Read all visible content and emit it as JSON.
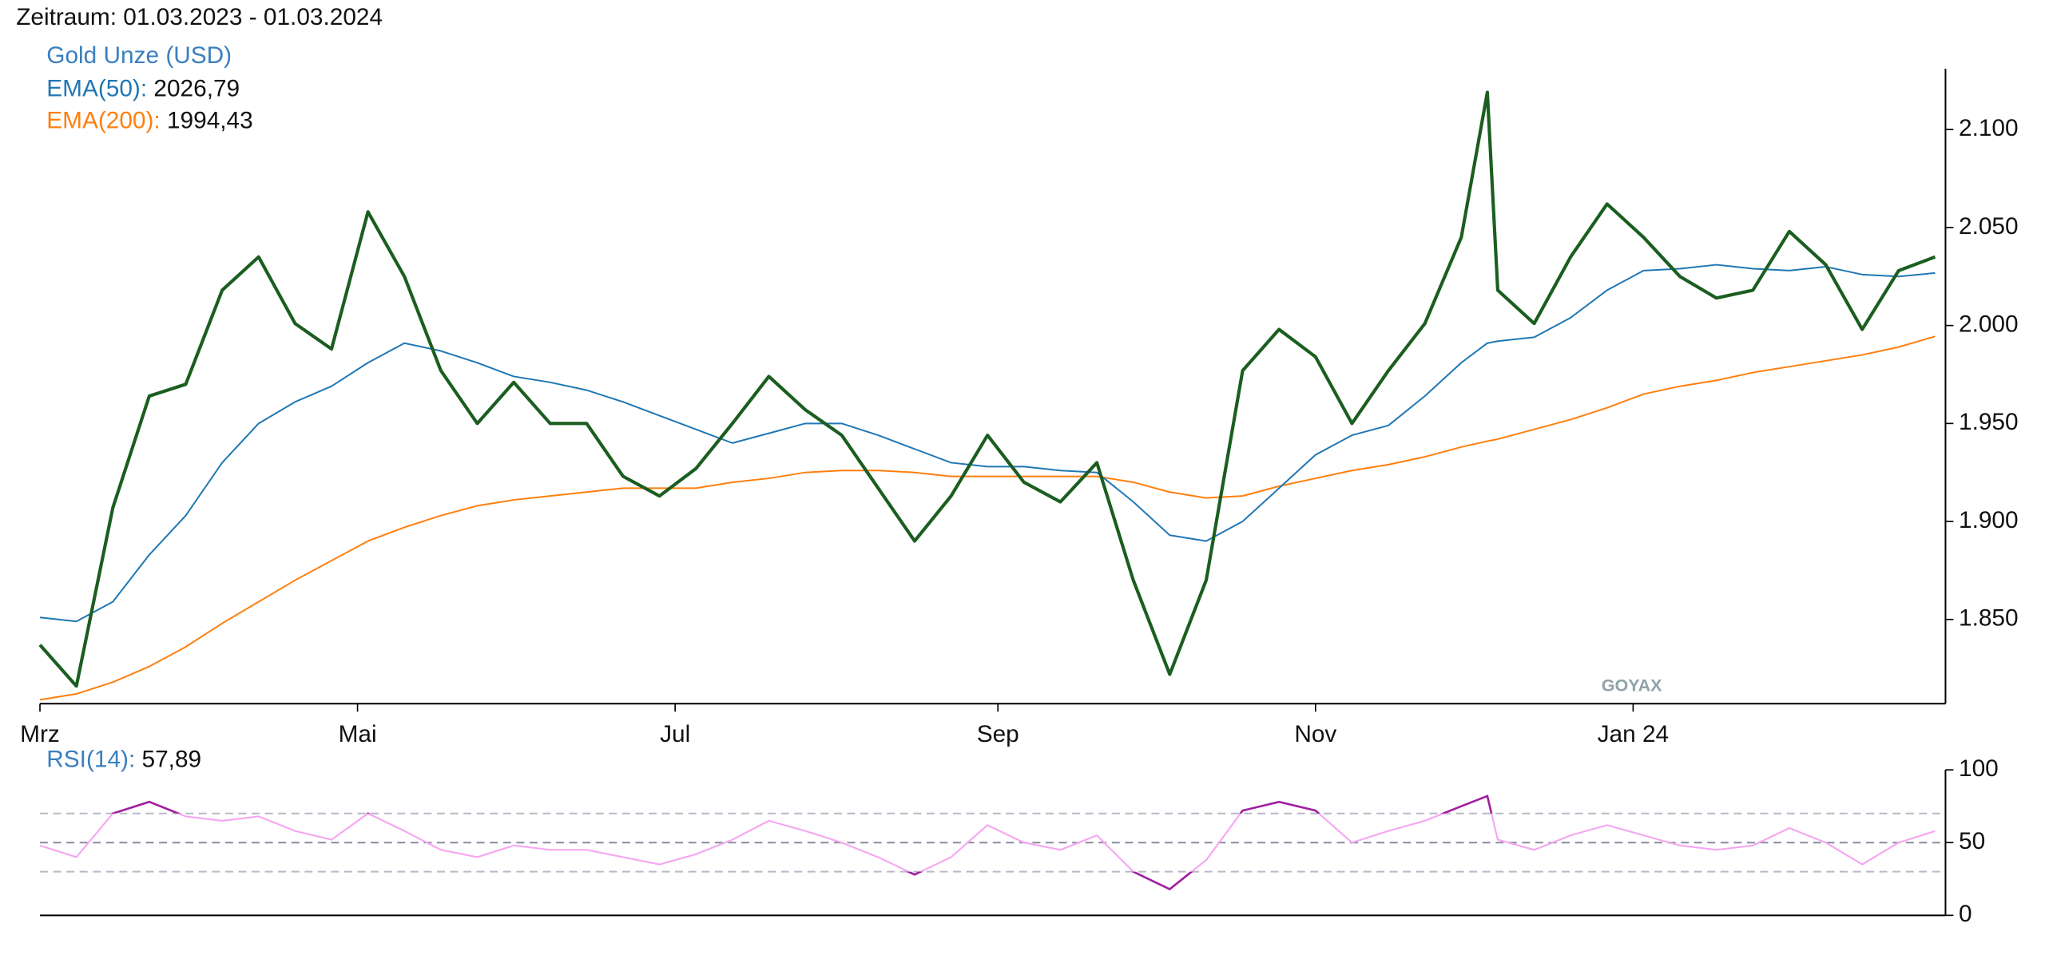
{
  "chart_data": [
    {
      "type": "line",
      "title": "Zeitraum: 01.03.2023 - 01.03.2024",
      "watermark": "GOYAX",
      "x": [
        "2023-03-01",
        "2023-03-08",
        "2023-03-15",
        "2023-03-22",
        "2023-03-29",
        "2023-04-05",
        "2023-04-12",
        "2023-04-19",
        "2023-04-26",
        "2023-05-03",
        "2023-05-10",
        "2023-05-17",
        "2023-05-24",
        "2023-05-31",
        "2023-06-07",
        "2023-06-14",
        "2023-06-21",
        "2023-06-28",
        "2023-07-05",
        "2023-07-12",
        "2023-07-19",
        "2023-07-26",
        "2023-08-02",
        "2023-08-09",
        "2023-08-16",
        "2023-08-23",
        "2023-08-30",
        "2023-09-06",
        "2023-09-13",
        "2023-09-20",
        "2023-09-27",
        "2023-10-04",
        "2023-10-11",
        "2023-10-18",
        "2023-10-25",
        "2023-11-01",
        "2023-11-08",
        "2023-11-15",
        "2023-11-22",
        "2023-11-29",
        "2023-12-04",
        "2023-12-06",
        "2023-12-13",
        "2023-12-20",
        "2023-12-27",
        "2024-01-03",
        "2024-01-10",
        "2024-01-17",
        "2024-01-24",
        "2024-01-31",
        "2024-02-07",
        "2024-02-14",
        "2024-02-21",
        "2024-02-28"
      ],
      "xlim": [
        "2023-03-01",
        "2024-03-01"
      ],
      "xticks": [
        {
          "value": "2023-03-01",
          "label": "Mrz"
        },
        {
          "value": "2023-05-01",
          "label": "Mai"
        },
        {
          "value": "2023-07-01",
          "label": "Jul"
        },
        {
          "value": "2023-09-01",
          "label": "Sep"
        },
        {
          "value": "2023-11-01",
          "label": "Nov"
        },
        {
          "value": "2024-01-01",
          "label": "Jan 24"
        }
      ],
      "ylim": [
        1807,
        2131
      ],
      "yticks": [
        {
          "value": 1850,
          "label": "1.850"
        },
        {
          "value": 1900,
          "label": "1.900"
        },
        {
          "value": 1950,
          "label": "1.950"
        },
        {
          "value": 2000,
          "label": "2.000"
        },
        {
          "value": 2050,
          "label": "2.050"
        },
        {
          "value": 2100,
          "label": "2.100"
        }
      ],
      "series": [
        {
          "name": "Gold Unze (USD)",
          "color": "#1b5e20",
          "legend_color": "#3a7fc0",
          "values": [
            1837,
            1816,
            1907,
            1964,
            1970,
            2018,
            2035,
            2001,
            1988,
            2058,
            2025,
            1977,
            1950,
            1971,
            1950,
            1950,
            1923,
            1913,
            1927,
            1950,
            1974,
            1957,
            1944,
            1917,
            1890,
            1913,
            1944,
            1920,
            1910,
            1930,
            1870,
            1822,
            1870,
            1977,
            1998,
            1984,
            1950,
            1977,
            2001,
            2045,
            2119,
            2018,
            2001,
            2035,
            2062,
            2045,
            2025,
            2014,
            2018,
            2048,
            2031,
            1998,
            2028,
            2035
          ]
        },
        {
          "name": "EMA(50):",
          "color": "#1f77b4",
          "current_label": "2026,79",
          "values": [
            1851,
            1849,
            1859,
            1883,
            1903,
            1930,
            1950,
            1961,
            1969,
            1981,
            1991,
            1987,
            1981,
            1974,
            1971,
            1967,
            1961,
            1954,
            1947,
            1940,
            1945,
            1950,
            1950,
            1944,
            1937,
            1930,
            1928,
            1928,
            1926,
            1925,
            1910,
            1893,
            1890,
            1900,
            1917,
            1934,
            1944,
            1949,
            1964,
            1981,
            1991,
            1992,
            1994,
            2004,
            2018,
            2028,
            2029,
            2031,
            2029,
            2028,
            2030,
            2026,
            2025,
            2026.79
          ]
        },
        {
          "name": "EMA(200):",
          "color": "#ff7f0e",
          "current_label": "1994,43",
          "values": [
            1809,
            1812,
            1818,
            1826,
            1836,
            1848,
            1859,
            1870,
            1880,
            1890,
            1897,
            1903,
            1908,
            1911,
            1913,
            1915,
            1917,
            1917,
            1917,
            1920,
            1922,
            1925,
            1926,
            1926,
            1925,
            1923,
            1923,
            1923,
            1923,
            1923,
            1920,
            1915,
            1912,
            1913,
            1918,
            1922,
            1926,
            1929,
            1933,
            1938,
            1941,
            1942,
            1947,
            1952,
            1958,
            1965,
            1969,
            1972,
            1976,
            1979,
            1982,
            1985,
            1989,
            1994.43
          ]
        }
      ]
    },
    {
      "type": "line",
      "series": [
        {
          "name": "RSI(14):",
          "color": "#f6a6f2",
          "extreme_color": "#a020a0",
          "legend_color": "#3a7fc0",
          "current_label": "57,89",
          "values": [
            48,
            40,
            70,
            78,
            68,
            65,
            68,
            58,
            52,
            70,
            58,
            45,
            40,
            48,
            45,
            45,
            40,
            35,
            42,
            52,
            65,
            58,
            50,
            40,
            28,
            40,
            62,
            50,
            45,
            55,
            30,
            18,
            38,
            72,
            78,
            72,
            50,
            58,
            65,
            75,
            82,
            52,
            45,
            55,
            62,
            55,
            48,
            45,
            48,
            60,
            50,
            35,
            50,
            57.89
          ]
        }
      ],
      "ylim": [
        0,
        100
      ],
      "yticks": [
        0,
        50,
        100
      ],
      "levels": [
        30,
        50,
        70
      ]
    }
  ]
}
